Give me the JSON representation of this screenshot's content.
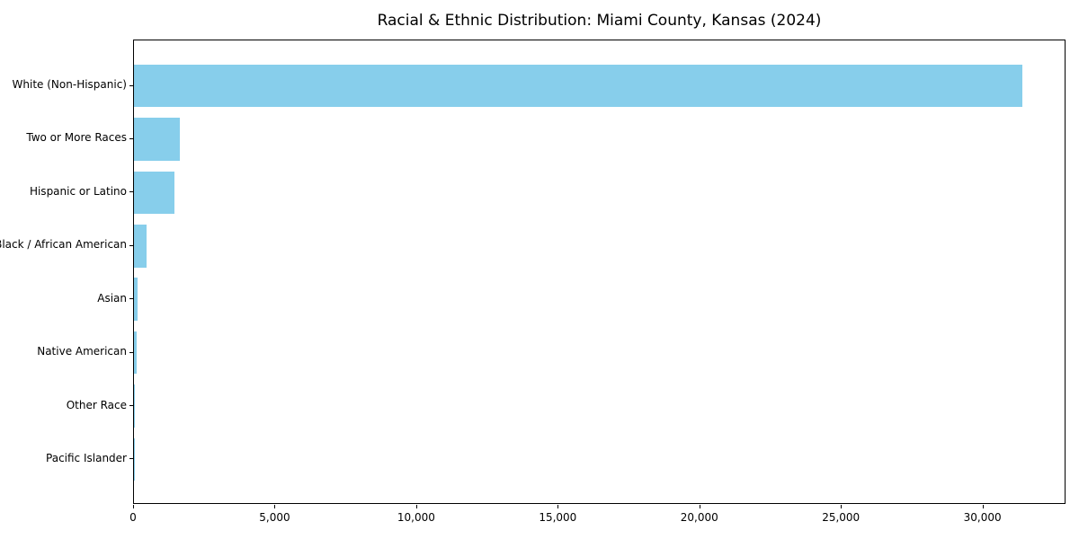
{
  "chart_data": {
    "type": "bar",
    "orientation": "horizontal",
    "title": "Racial & Ethnic Distribution: Miami County, Kansas (2024)",
    "categories": [
      "White (Non-Hispanic)",
      "Two or More Races",
      "Hispanic or Latino",
      "Black / African American",
      "Asian",
      "Native American",
      "Other Race",
      "Pacific Islander"
    ],
    "values": [
      31365,
      1620,
      1430,
      445,
      130,
      100,
      40,
      15
    ],
    "xlabel": "",
    "ylabel": "",
    "xlim": [
      0,
      32933
    ],
    "xticks": [
      {
        "value": 0,
        "label": "0"
      },
      {
        "value": 5000,
        "label": "5,000"
      },
      {
        "value": 10000,
        "label": "10,000"
      },
      {
        "value": 15000,
        "label": "15,000"
      },
      {
        "value": 20000,
        "label": "20,000"
      },
      {
        "value": 25000,
        "label": "25,000"
      },
      {
        "value": 30000,
        "label": "30,000"
      }
    ],
    "bar_color": "#87CEEB",
    "grid": "off",
    "legend": "none",
    "background_color": "#ffffff",
    "spine_color": "#000000"
  }
}
